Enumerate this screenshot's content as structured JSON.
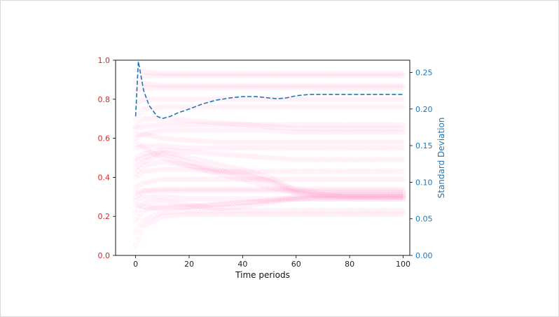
{
  "chart_data": {
    "type": "line",
    "title": "",
    "xlabel": "Time periods",
    "ylabel": "",
    "y2label": "Standard Deviation",
    "xlim": [
      -7.5,
      102.5
    ],
    "ylim": [
      0.0,
      1.0
    ],
    "y2lim": [
      0.0,
      0.2667
    ],
    "xticks": [
      "0",
      "20",
      "40",
      "60",
      "80",
      "100"
    ],
    "yticks": [
      "0.0",
      "0.2",
      "0.4",
      "0.6",
      "0.8",
      "1.0"
    ],
    "y2ticks": [
      "0.00",
      "0.05",
      "0.10",
      "0.15",
      "0.20",
      "0.25"
    ],
    "grid": false,
    "colors": {
      "left_axis": "#d62728",
      "right_axis": "#1f77b4",
      "individual_series": "#ff69b4",
      "std_line": "#1f77b4"
    },
    "series": [
      {
        "name": "",
        "axis": "right",
        "style": "dashed",
        "x": [
          0,
          1,
          2,
          3,
          5,
          8,
          10,
          13,
          16,
          20,
          25,
          30,
          35,
          40,
          45,
          50,
          53,
          56,
          60,
          65,
          70,
          80,
          90,
          100
        ],
        "values": [
          0.19,
          0.265,
          0.245,
          0.225,
          0.205,
          0.19,
          0.187,
          0.19,
          0.195,
          0.2,
          0.207,
          0.212,
          0.215,
          0.217,
          0.217,
          0.215,
          0.214,
          0.215,
          0.218,
          0.22,
          0.22,
          0.22,
          0.22,
          0.22
        ]
      }
    ],
    "agent_paths": {
      "axis": "left",
      "style": "faint markers",
      "x": [
        0,
        3,
        10,
        20,
        30,
        40,
        50,
        60,
        70,
        80,
        90,
        100
      ],
      "paths": [
        [
          0.88,
          0.88,
          0.87,
          0.87,
          0.87,
          0.87,
          0.87,
          0.87,
          0.87,
          0.87,
          0.87,
          0.87
        ],
        [
          0.84,
          0.86,
          0.86,
          0.86,
          0.86,
          0.86,
          0.86,
          0.86,
          0.86,
          0.86,
          0.86,
          0.86
        ],
        [
          0.95,
          0.94,
          0.93,
          0.93,
          0.93,
          0.93,
          0.93,
          0.93,
          0.93,
          0.93,
          0.93,
          0.93
        ],
        [
          0.9,
          0.92,
          0.92,
          0.92,
          0.92,
          0.92,
          0.92,
          0.92,
          0.92,
          0.92,
          0.92,
          0.92
        ],
        [
          0.78,
          0.8,
          0.8,
          0.8,
          0.8,
          0.8,
          0.8,
          0.8,
          0.8,
          0.8,
          0.8,
          0.8
        ],
        [
          0.7,
          0.75,
          0.76,
          0.76,
          0.76,
          0.76,
          0.76,
          0.76,
          0.76,
          0.76,
          0.76,
          0.76
        ],
        [
          0.66,
          0.7,
          0.7,
          0.69,
          0.68,
          0.67,
          0.66,
          0.65,
          0.65,
          0.65,
          0.65,
          0.65
        ],
        [
          0.62,
          0.62,
          0.6,
          0.59,
          0.58,
          0.58,
          0.58,
          0.58,
          0.58,
          0.58,
          0.58,
          0.58
        ],
        [
          0.55,
          0.56,
          0.56,
          0.55,
          0.55,
          0.55,
          0.55,
          0.55,
          0.55,
          0.55,
          0.55,
          0.55
        ],
        [
          0.5,
          0.52,
          0.54,
          0.53,
          0.52,
          0.51,
          0.5,
          0.49,
          0.49,
          0.49,
          0.49,
          0.49
        ],
        [
          0.48,
          0.5,
          0.53,
          0.5,
          0.47,
          0.44,
          0.4,
          0.33,
          0.31,
          0.3,
          0.3,
          0.3
        ],
        [
          0.45,
          0.48,
          0.52,
          0.48,
          0.44,
          0.41,
          0.38,
          0.32,
          0.31,
          0.31,
          0.31,
          0.31
        ],
        [
          0.58,
          0.55,
          0.5,
          0.46,
          0.42,
          0.39,
          0.35,
          0.32,
          0.3,
          0.3,
          0.3,
          0.3
        ],
        [
          0.4,
          0.43,
          0.44,
          0.44,
          0.43,
          0.43,
          0.43,
          0.43,
          0.43,
          0.43,
          0.43,
          0.43
        ],
        [
          0.35,
          0.37,
          0.39,
          0.39,
          0.39,
          0.39,
          0.39,
          0.39,
          0.39,
          0.39,
          0.39,
          0.39
        ],
        [
          0.32,
          0.33,
          0.34,
          0.34,
          0.34,
          0.34,
          0.34,
          0.34,
          0.34,
          0.34,
          0.34,
          0.34
        ],
        [
          0.3,
          0.33,
          0.33,
          0.33,
          0.33,
          0.33,
          0.33,
          0.33,
          0.33,
          0.33,
          0.33,
          0.33
        ],
        [
          0.28,
          0.3,
          0.3,
          0.29,
          0.29,
          0.29,
          0.29,
          0.29,
          0.29,
          0.29,
          0.29,
          0.29
        ],
        [
          0.22,
          0.27,
          0.28,
          0.26,
          0.24,
          0.25,
          0.27,
          0.29,
          0.3,
          0.3,
          0.3,
          0.3
        ],
        [
          0.18,
          0.23,
          0.25,
          0.25,
          0.26,
          0.27,
          0.28,
          0.3,
          0.31,
          0.31,
          0.31,
          0.31
        ],
        [
          0.12,
          0.18,
          0.22,
          0.23,
          0.23,
          0.23,
          0.23,
          0.23,
          0.23,
          0.23,
          0.23,
          0.23
        ],
        [
          0.05,
          0.15,
          0.2,
          0.21,
          0.21,
          0.21,
          0.21,
          0.21,
          0.21,
          0.21,
          0.21,
          0.21
        ],
        [
          0.26,
          0.25,
          0.24,
          0.25,
          0.26,
          0.27,
          0.28,
          0.29,
          0.29,
          0.29,
          0.29,
          0.29
        ],
        [
          0.42,
          0.46,
          0.48,
          0.46,
          0.44,
          0.42,
          0.38,
          0.34,
          0.32,
          0.32,
          0.32,
          0.32
        ],
        [
          0.6,
          0.62,
          0.64,
          0.64,
          0.64,
          0.64,
          0.64,
          0.63,
          0.63,
          0.63,
          0.63,
          0.63
        ],
        [
          0.65,
          0.66,
          0.67,
          0.67,
          0.67,
          0.67,
          0.67,
          0.67,
          0.67,
          0.67,
          0.67,
          0.67
        ]
      ]
    }
  }
}
